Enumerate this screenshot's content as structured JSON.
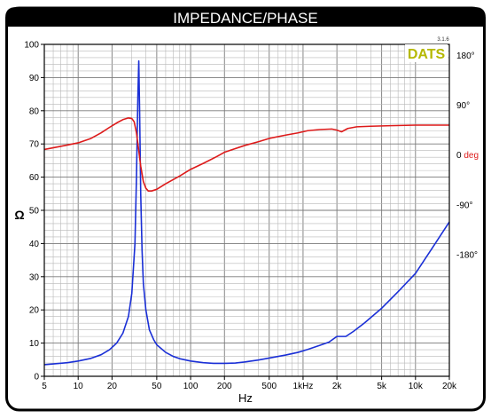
{
  "header": {
    "title": "IMPEDANCE/PHASE"
  },
  "badge": {
    "text": "DATS",
    "version": "3.1.6"
  },
  "colors": {
    "frame": "#000000",
    "impedance": "#1a2fd6",
    "phase": "#dd1a1a",
    "badge_text": "#b5b800",
    "grid": "#9a9a9a",
    "zero_deg": "#dd1a1a"
  },
  "chart_data": {
    "type": "line",
    "title": "IMPEDANCE/PHASE",
    "xlabel": "Hz",
    "ylabel": "Ω",
    "xscale": "log",
    "xlim": [
      5,
      20000
    ],
    "ylim": [
      0,
      100
    ],
    "y2lim": [
      -400,
      200
    ],
    "grid": true,
    "x_tick_labels": [
      {
        "value": 5,
        "label": "5"
      },
      {
        "value": 10,
        "label": "10"
      },
      {
        "value": 20,
        "label": "20"
      },
      {
        "value": 50,
        "label": "50"
      },
      {
        "value": 100,
        "label": "100"
      },
      {
        "value": 200,
        "label": "200"
      },
      {
        "value": 500,
        "label": "500"
      },
      {
        "value": 1000,
        "label": "1kHz"
      },
      {
        "value": 2000,
        "label": "2k"
      },
      {
        "value": 5000,
        "label": "5k"
      },
      {
        "value": 10000,
        "label": "10k"
      },
      {
        "value": 20000,
        "label": "20k"
      }
    ],
    "y_tick_labels": [
      "0",
      "10",
      "20",
      "30",
      "40",
      "50",
      "60",
      "70",
      "80",
      "90",
      "100"
    ],
    "y2_tick_labels": [
      {
        "value": 180,
        "label": "180°"
      },
      {
        "value": 90,
        "label": "90°"
      },
      {
        "value": 0,
        "label": "0",
        "suffix": "deg"
      },
      {
        "value": -90,
        "label": "-90°"
      },
      {
        "value": -180,
        "label": "-180°"
      }
    ],
    "series": [
      {
        "axis": "left",
        "color": "#1a2fd6",
        "points": [
          [
            5,
            3.5
          ],
          [
            8,
            4.1
          ],
          [
            10,
            4.6
          ],
          [
            13,
            5.4
          ],
          [
            16,
            6.5
          ],
          [
            19,
            8.0
          ],
          [
            22,
            10.0
          ],
          [
            25,
            13.0
          ],
          [
            28,
            18.0
          ],
          [
            30,
            25.0
          ],
          [
            32,
            40.0
          ],
          [
            33,
            60.0
          ],
          [
            34,
            85.0
          ],
          [
            34.6,
            95.0
          ],
          [
            35.2,
            80.0
          ],
          [
            36,
            55.0
          ],
          [
            37,
            38.0
          ],
          [
            38,
            28.0
          ],
          [
            40,
            20.0
          ],
          [
            43,
            14.0
          ],
          [
            47,
            11.0
          ],
          [
            50,
            9.5
          ],
          [
            60,
            7.2
          ],
          [
            70,
            6.0
          ],
          [
            80,
            5.3
          ],
          [
            100,
            4.6
          ],
          [
            130,
            4.1
          ],
          [
            160,
            3.9
          ],
          [
            200,
            3.9
          ],
          [
            250,
            4.0
          ],
          [
            300,
            4.3
          ],
          [
            400,
            4.9
          ],
          [
            500,
            5.5
          ],
          [
            700,
            6.4
          ],
          [
            900,
            7.2
          ],
          [
            1100,
            8.1
          ],
          [
            1400,
            9.3
          ],
          [
            1700,
            10.3
          ],
          [
            2000,
            12.0
          ],
          [
            2400,
            12.0
          ],
          [
            2800,
            13.5
          ],
          [
            3500,
            16.0
          ],
          [
            5000,
            20.5
          ],
          [
            7000,
            25.5
          ],
          [
            10000,
            31.0
          ],
          [
            14000,
            38.5
          ],
          [
            20000,
            46.5
          ]
        ]
      },
      {
        "axis": "right",
        "color": "#dd1a1a",
        "points": [
          [
            5,
            10
          ],
          [
            8,
            18
          ],
          [
            10,
            22
          ],
          [
            13,
            30
          ],
          [
            16,
            40
          ],
          [
            19,
            50
          ],
          [
            22,
            58
          ],
          [
            25,
            64
          ],
          [
            28,
            67
          ],
          [
            30,
            66
          ],
          [
            31.5,
            60
          ],
          [
            33,
            40
          ],
          [
            34.5,
            10
          ],
          [
            36,
            -20
          ],
          [
            38,
            -48
          ],
          [
            40,
            -60
          ],
          [
            42,
            -65
          ],
          [
            45,
            -65
          ],
          [
            50,
            -62
          ],
          [
            60,
            -52
          ],
          [
            80,
            -38
          ],
          [
            100,
            -26
          ],
          [
            130,
            -15
          ],
          [
            170,
            -3
          ],
          [
            200,
            5
          ],
          [
            300,
            17
          ],
          [
            400,
            24
          ],
          [
            500,
            30
          ],
          [
            700,
            36
          ],
          [
            900,
            40
          ],
          [
            1100,
            44
          ],
          [
            1400,
            46
          ],
          [
            1800,
            47
          ],
          [
            2000,
            45
          ],
          [
            2200,
            42
          ],
          [
            2500,
            48
          ],
          [
            3000,
            51
          ],
          [
            4000,
            52
          ],
          [
            6000,
            53
          ],
          [
            10000,
            54
          ],
          [
            15000,
            54
          ],
          [
            20000,
            54
          ]
        ]
      }
    ]
  }
}
